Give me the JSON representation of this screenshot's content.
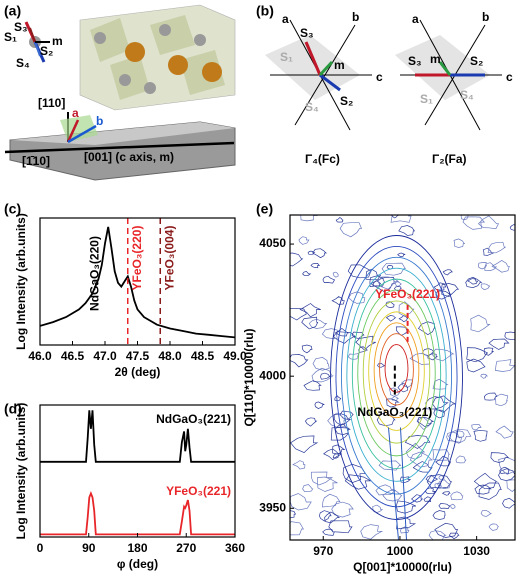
{
  "figure_a": {
    "label": "(a)",
    "spins": [
      "S₁",
      "S₂",
      "S₃",
      "S₄"
    ],
    "m": "m",
    "axes": [
      "[110]",
      "a",
      "b",
      "[1̄10]",
      "[001] (c axis, m)"
    ]
  },
  "figure_b": {
    "label": "(b)",
    "configs": [
      {
        "axes": [
          "a",
          "b",
          "c"
        ],
        "spins": [
          "S₁",
          "S₂",
          "S₃",
          "S₄"
        ],
        "m": "m",
        "caption": "Γ₄(Fc)"
      },
      {
        "axes": [
          "a",
          "b",
          "c"
        ],
        "spins": [
          "S₁",
          "S₂",
          "S₃",
          "S₄"
        ],
        "m": "m",
        "caption": "Γ₂(Fa)"
      }
    ]
  },
  "chart_data": [
    {
      "type": "line",
      "label": "(c)",
      "xlabel": "2θ (deg)",
      "ylabel": "Log Intensity (arb.units)",
      "x": [
        46.0,
        46.2,
        46.4,
        46.6,
        46.7,
        46.8,
        46.9,
        46.95,
        47.0,
        47.05,
        47.1,
        47.15,
        47.2,
        47.25,
        47.3,
        47.35,
        47.4,
        47.45,
        47.5,
        47.6,
        47.7,
        47.8,
        48.0,
        48.2,
        48.4,
        48.6,
        48.8,
        49.0
      ],
      "series": [
        {
          "name": "NdGaO₃(220)",
          "color": "#000000",
          "values": [
            1.5,
            1.8,
            2.2,
            2.8,
            3.3,
            4.0,
            5.2,
            6.3,
            8.0,
            9.3,
            7.6,
            5.8,
            4.9,
            4.6,
            5.0,
            5.4,
            4.6,
            3.5,
            2.8,
            2.2,
            1.9,
            1.6,
            1.3,
            1.1,
            0.9,
            0.8,
            0.7,
            0.6
          ]
        }
      ],
      "reference_lines": [
        {
          "x": 47.35,
          "label": "YFeO₃(220)",
          "color": "#e8262a"
        },
        {
          "x": 47.85,
          "label": "YFeO₃(004)",
          "color": "#8b1a1a"
        }
      ],
      "xlim": [
        46.0,
        49.0
      ],
      "xticks": [
        {
          "value": 46,
          "label": "46.0"
        },
        46.5,
        {
          "value": 47,
          "label": "47.0"
        },
        47.5,
        {
          "value": 48,
          "label": "48.0"
        },
        48.5,
        {
          "value": 49,
          "label": "49.0"
        }
      ],
      "ylim": [
        0,
        10
      ]
    },
    {
      "type": "line",
      "label": "(d)",
      "xlabel": "φ (deg)",
      "ylabel": "Log Intensity (arb.units)",
      "x": [
        0,
        85,
        88,
        91,
        94,
        97,
        100,
        103,
        106,
        250,
        258,
        262,
        266,
        268,
        270,
        273,
        276,
        279,
        282,
        360
      ],
      "series": [
        {
          "name": "NdGaO₃(221)",
          "color": "#000000",
          "values": [
            5.7,
            5.7,
            7.5,
            9.6,
            8.2,
            9.6,
            7.0,
            5.7,
            5.7,
            5.7,
            5.7,
            7.2,
            8.0,
            6.5,
            7.0,
            8.2,
            6.8,
            5.7,
            5.7,
            5.7
          ]
        },
        {
          "name": "YFeO₃(221)",
          "color": "#e8262a",
          "values": [
            0.2,
            0.2,
            1.5,
            3.0,
            3.3,
            3.0,
            2.0,
            0.2,
            0.2,
            0.2,
            0.2,
            1.2,
            2.3,
            2.2,
            2.4,
            2.8,
            2.0,
            0.2,
            0.2,
            0.2
          ]
        }
      ],
      "xlim": [
        0,
        360
      ],
      "xticks": [
        0,
        90,
        180,
        270,
        360
      ],
      "ylim": [
        0,
        10
      ]
    },
    {
      "type": "contour",
      "label": "(e)",
      "xlabel": "Q[001]*10000(rlu)",
      "ylabel": "Q[110]*10000(rlu)",
      "markers": [
        {
          "label": "YFeO₃(221)",
          "x": 1003,
          "y": [
            4027,
            4013
          ],
          "color": "#e8262a"
        },
        {
          "label": "NdGaO₃(221)",
          "x": 998,
          "y": [
            4004,
            3993
          ],
          "color": "#000000"
        }
      ],
      "xlim": [
        957,
        1045
      ],
      "xticks": [
        970,
        1000,
        1030
      ],
      "ylim": [
        3938,
        4061
      ],
      "yticks": [
        3950,
        4000,
        4050
      ]
    }
  ]
}
